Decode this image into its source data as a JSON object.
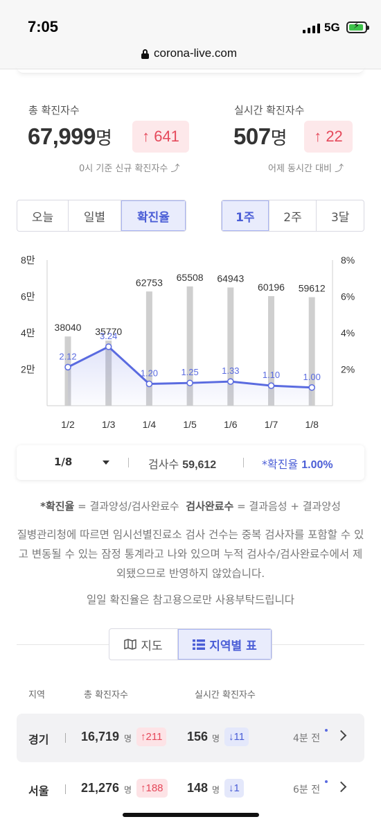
{
  "status": {
    "time": "7:05",
    "network": "5G"
  },
  "browser": {
    "url": "corona-live.com"
  },
  "stats": {
    "total": {
      "label": "총 확진자수",
      "value": "67,999",
      "unit": "명",
      "delta": "641",
      "note": "0시 기준 신규 확진자수"
    },
    "live": {
      "label": "실시간 확진자수",
      "value": "507",
      "unit": "명",
      "delta": "22",
      "note": "어제 동시간 대비"
    }
  },
  "view_tabs": [
    "오늘",
    "일별",
    "확진율"
  ],
  "view_tabs_active": "확진율",
  "range_tabs": [
    "1주",
    "2주",
    "3달"
  ],
  "range_tabs_active": "1주",
  "chart_data": {
    "type": "bar",
    "categories": [
      "1/2",
      "1/3",
      "1/4",
      "1/5",
      "1/6",
      "1/7",
      "1/8"
    ],
    "series": [
      {
        "type": "bar",
        "values": [
          38040,
          35770,
          62753,
          65508,
          64943,
          60196,
          59612
        ]
      },
      {
        "type": "line",
        "values": [
          2.12,
          3.24,
          1.2,
          1.25,
          1.33,
          1.1,
          1.0
        ]
      }
    ],
    "y_left": {
      "ylim": [
        0,
        80000
      ],
      "ticks": [
        "8만",
        "6만",
        "4만",
        "2만"
      ]
    },
    "y_right": {
      "ylim": [
        0,
        8
      ],
      "ticks": [
        "8%",
        "6%",
        "4%",
        "2%"
      ]
    },
    "colors": {
      "bar": "#cfcfcf",
      "line": "#5a6be0"
    }
  },
  "selector": {
    "date": "1/8",
    "tests_label": "검사수",
    "tests_value": "59,612",
    "rate_label": "*확진율",
    "rate_value": "1.00%"
  },
  "definition": {
    "term1": "*확진율",
    "def1": "= 결과양성/검사완료수",
    "term2": "검사완료수",
    "def2": "= 결과음성 + 결과양성"
  },
  "notice": "질병관리청에 따르면 임시선별진료소 검사 건수는 중복 검사자를 포함할 수 있고 변동될 수 있는 잠정 통계라고 나와 있으며 누적 검사수/검사완료수에서 제외됐으므로 반영하지 않았습니다.",
  "disclaimer": "일일 확진율은 참고용으로만 사용부탁드립니다",
  "map_tabs": {
    "map": "지도",
    "table": "지역별 표"
  },
  "table_headers": {
    "region": "지역",
    "total": "총 확진자수",
    "live": "실시간 확진자수"
  },
  "rows": [
    {
      "region": "경기",
      "total": "16,719",
      "unit": "명",
      "total_delta": "211",
      "live": "156",
      "live_unit": "명",
      "live_delta": "11",
      "ago": "4분 전"
    },
    {
      "region": "서울",
      "total": "21,276",
      "unit": "명",
      "total_delta": "188",
      "live": "148",
      "live_unit": "명",
      "live_delta": "1",
      "ago": "6분 전"
    }
  ]
}
